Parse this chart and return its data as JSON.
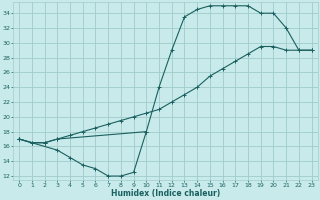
{
  "xlabel": "Humidex (Indice chaleur)",
  "bg_color": "#c8eaea",
  "line_color": "#1a6060",
  "grid_color": "#a0cccc",
  "xlim": [
    -0.5,
    23.5
  ],
  "ylim": [
    11.5,
    35.5
  ],
  "xticks": [
    0,
    1,
    2,
    3,
    4,
    5,
    6,
    7,
    8,
    9,
    10,
    11,
    12,
    13,
    14,
    15,
    16,
    17,
    18,
    19,
    20,
    21,
    22,
    23
  ],
  "yticks": [
    12,
    14,
    16,
    18,
    20,
    22,
    24,
    26,
    28,
    30,
    32,
    34
  ],
  "curve1_x": [
    0,
    1,
    2,
    3,
    4,
    5,
    6,
    7,
    8,
    9,
    10,
    11,
    12,
    13,
    14,
    15,
    16,
    17,
    18,
    19,
    20,
    21,
    22,
    23
  ],
  "curve1_y": [
    17,
    16.5,
    16.5,
    17,
    17.5,
    18,
    18.5,
    19,
    19.5,
    20,
    20.5,
    21,
    22,
    23,
    24,
    25.5,
    26.5,
    27.5,
    28.5,
    29.5,
    29.5,
    29,
    29,
    29
  ],
  "curve2_x": [
    0,
    1,
    2,
    3,
    10,
    11,
    12,
    13,
    14,
    15,
    16,
    17,
    18,
    19,
    20,
    21,
    22,
    23
  ],
  "curve2_y": [
    17,
    16.5,
    16.5,
    17,
    18,
    24,
    29,
    33.5,
    34.5,
    35,
    35,
    35,
    35,
    34,
    34,
    32,
    29,
    29
  ],
  "curve3_x": [
    0,
    3,
    4,
    5,
    6,
    7,
    8,
    9,
    10
  ],
  "curve3_y": [
    17,
    15.5,
    14.5,
    13.5,
    13,
    12,
    12,
    12.5,
    18
  ]
}
